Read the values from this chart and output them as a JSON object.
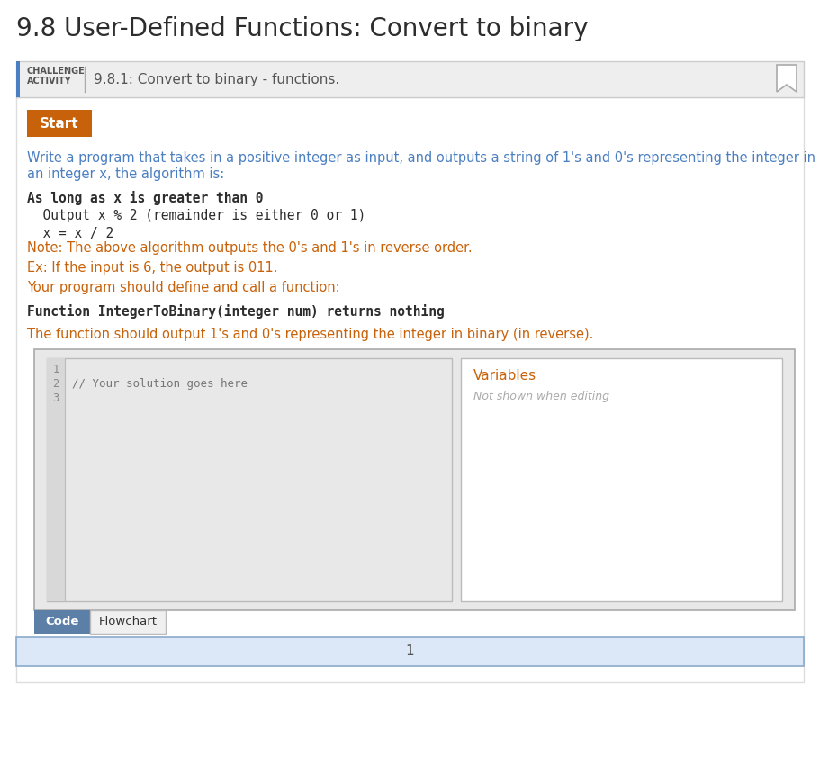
{
  "title": "9.8 User-Defined Functions: Convert to binary",
  "title_color": "#2d2d2d",
  "title_fontsize": 20,
  "challenge_label_line1": "CHALLENGE",
  "challenge_label_line2": "ACTIVITY",
  "challenge_text": "9.8.1: Convert to binary - functions.",
  "banner_bg": "#eeeeee",
  "banner_border_color": "#4a7fc1",
  "start_button_color": "#c8620a",
  "start_button_text": "Start",
  "start_button_text_color": "#ffffff",
  "body_bg": "#ffffff",
  "desc_line1": "Write a program that takes in a positive integer as input, and outputs a string of 1's and 0's representing the integer in binary. For",
  "desc_line2": "an integer x, the algorithm is:",
  "desc_color": "#4a7fc1",
  "code_line1": "As long as x is greater than 0",
  "code_line2": "  Output x % 2 (remainder is either 0 or 1)",
  "code_line3": "  x = x / 2",
  "code_color": "#2d2d2d",
  "note_text": "Note: The above algorithm outputs the 0's and 1's in reverse order.",
  "note_color": "#c8620a",
  "ex_text": "Ex: If the input is 6, the output is 011.",
  "ex_color": "#c8620a",
  "prog_text": "Your program should define and call a function:",
  "prog_color": "#c8620a",
  "func_text": "Function IntegerToBinary(integer num) returns nothing",
  "func_color": "#2d2d2d",
  "func_desc": "The function should output 1's and 0's representing the integer in binary (in reverse).",
  "func_desc_color": "#c8620a",
  "editor_outer_bg": "#e8e8e8",
  "editor_outer_border": "#aaaaaa",
  "code_panel_bg": "#e8e8e8",
  "code_panel_border": "#bbbbbb",
  "gutter_bg": "#d8d8d8",
  "gutter_border": "#bbbbbb",
  "var_panel_bg": "#ffffff",
  "var_panel_border": "#bbbbbb",
  "line_numbers": [
    "1",
    "2",
    "3"
  ],
  "code_placeholder": "// Your solution goes here",
  "variables_label": "Variables",
  "variables_sublabel": "Not shown when editing",
  "variables_label_color": "#c8620a",
  "variables_sublabel_color": "#aaaaaa",
  "tab_code_text": "Code",
  "tab_flowchart_text": "Flowchart",
  "tab_code_bg": "#5b7fa6",
  "tab_code_text_color": "#ffffff",
  "tab_flowchart_bg": "#f0f0f0",
  "tab_flowchart_text_color": "#333333",
  "tab_flowchart_border": "#bbbbbb",
  "bottom_bar_bg": "#dce8f8",
  "bottom_bar_border": "#8aaacc",
  "bottom_bar_text": "1",
  "bottom_bar_text_color": "#555555",
  "bookmark_fill": "#ffffff",
  "bookmark_stroke": "#aaaaaa",
  "outer_bg": "#ffffff",
  "page_width": 9.11,
  "page_height": 8.41
}
